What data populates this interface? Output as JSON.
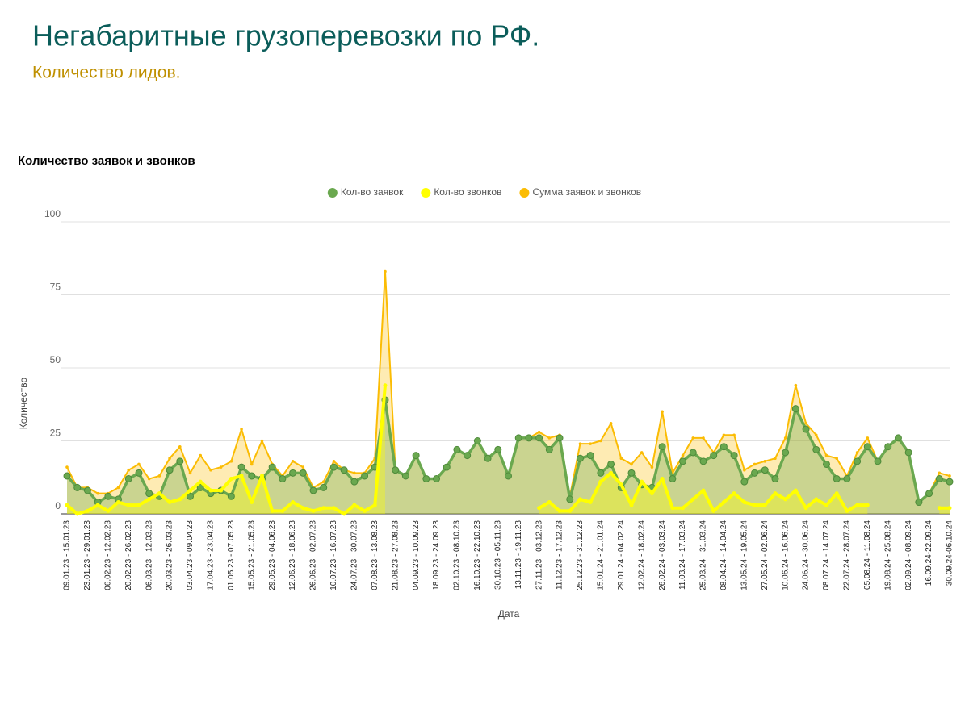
{
  "header": {
    "title": "Негабаритные грузоперевозки по РФ.",
    "subtitle": "Количество лидов."
  },
  "chart_data": {
    "type": "line",
    "title": "Количество заявок и звонков",
    "x_label": "Дата",
    "y_label": "Количество",
    "legend": "top",
    "grid": true,
    "ylim": [
      0,
      100
    ],
    "yticks": [
      0,
      25,
      50,
      75,
      100
    ],
    "categories": [
      "09.01.23 - 15.01.23",
      null,
      "23.01.23 - 29.01.23",
      null,
      "06.02.23 - 12.02.23",
      null,
      "20.02.23 - 26.02.23",
      null,
      "06.03.23 - 12.03.23",
      null,
      "20.03.23 - 26.03.23",
      null,
      "03.04.23 - 09.04.23",
      null,
      "17.04.23 - 23.04.23",
      null,
      "01.05.23 - 07.05.23",
      null,
      "15.05.23 - 21.05.23",
      null,
      "29.05.23 - 04.06.23",
      null,
      "12.06.23 - 18.06.23",
      null,
      "26.06.23 - 02.07.23",
      null,
      "10.07.23 - 16.07.23",
      null,
      "24.07.23 - 30.07.23",
      null,
      "07.08.23 - 13.08.23",
      null,
      "21.08.23 - 27.08.23",
      null,
      "04.09.23 - 10.09.23",
      null,
      "18.09.23 - 24.09.23",
      null,
      "02.10.23 - 08.10.23",
      null,
      "16.10.23 - 22.10.23",
      null,
      "30.10.23 - 05.11.23",
      null,
      "13.11.23 - 19.11.23",
      null,
      "27.11.23 - 03.12.23",
      null,
      "11.12.23 - 17.12.23",
      null,
      "25.12.23 - 31.12.23",
      null,
      "15.01.24 - 21.01.24",
      null,
      "29.01.24 - 04.02.24",
      null,
      "12.02.24 - 18.02.24",
      null,
      "26.02.24 - 03.03.24",
      null,
      "11.03.24 - 17.03.24",
      null,
      "25.03.24 - 31.03.24",
      null,
      "08.04.24 - 14.04.24",
      null,
      "13.05.24 - 19.05.24",
      null,
      "27.05.24 - 02.06.24",
      null,
      "10.06.24 - 16.06.24",
      null,
      "24.06.24 - 30.06.24",
      null,
      "08.07.24 - 14.07.24",
      null,
      "22.07.24 - 28.07.24",
      null,
      "05.08.24 - 11.08.24",
      null,
      "19.08.24 - 25.08.24",
      null,
      "02.09.24 - 08.09.24",
      null,
      "16.09.24-22.09.24",
      null,
      "30.09.24-06.10.24"
    ],
    "series": [
      {
        "name": "Кол-во заявок",
        "color": "#6aa84f",
        "values": [
          13,
          9,
          8,
          4,
          6,
          5,
          12,
          14,
          7,
          6,
          15,
          18,
          6,
          9,
          7,
          8,
          6,
          16,
          13,
          12,
          16,
          12,
          14,
          14,
          8,
          9,
          16,
          15,
          11,
          13,
          16,
          39,
          15,
          13,
          20,
          12,
          12,
          16,
          22,
          20,
          25,
          19,
          22,
          13,
          26,
          26,
          26,
          22,
          26,
          5,
          19,
          20,
          14,
          17,
          9,
          14,
          10,
          9,
          23,
          12,
          18,
          21,
          18,
          20,
          23,
          20,
          11,
          14,
          15,
          12,
          21,
          36,
          29,
          22,
          17,
          12,
          12,
          18,
          23,
          18,
          23,
          26,
          21,
          4,
          7,
          12,
          11
        ]
      },
      {
        "name": "Кол-во звонков",
        "color": "#ffff00",
        "values": [
          3,
          0,
          1,
          3,
          1,
          4,
          3,
          3,
          5,
          7,
          4,
          5,
          8,
          11,
          8,
          8,
          12,
          13,
          4,
          13,
          1,
          1,
          4,
          2,
          1,
          2,
          2,
          0,
          3,
          1,
          3,
          44,
          null,
          null,
          null,
          null,
          null,
          null,
          null,
          null,
          null,
          null,
          null,
          null,
          null,
          null,
          2,
          4,
          1,
          1,
          5,
          4,
          11,
          14,
          10,
          3,
          11,
          7,
          12,
          2,
          2,
          5,
          8,
          1,
          4,
          7,
          4,
          3,
          3,
          7,
          5,
          8,
          2,
          5,
          3,
          7,
          1,
          3,
          3,
          null,
          null,
          null,
          null,
          null,
          null,
          2,
          2
        ]
      },
      {
        "name": "Сумма заявок и звонков",
        "color": "#fbbc04",
        "values": [
          16,
          9,
          9,
          7,
          7,
          9,
          15,
          17,
          12,
          13,
          19,
          23,
          14,
          20,
          15,
          16,
          18,
          29,
          17,
          25,
          17,
          13,
          18,
          16,
          9,
          11,
          18,
          15,
          14,
          14,
          19,
          83,
          15,
          13,
          20,
          12,
          12,
          16,
          22,
          20,
          25,
          19,
          22,
          13,
          26,
          26,
          28,
          26,
          27,
          6,
          24,
          24,
          25,
          31,
          19,
          17,
          21,
          16,
          35,
          14,
          20,
          26,
          26,
          21,
          27,
          27,
          15,
          17,
          18,
          19,
          26,
          44,
          31,
          27,
          20,
          19,
          13,
          21,
          26,
          18,
          23,
          26,
          21,
          4,
          7,
          14,
          13
        ]
      }
    ]
  }
}
